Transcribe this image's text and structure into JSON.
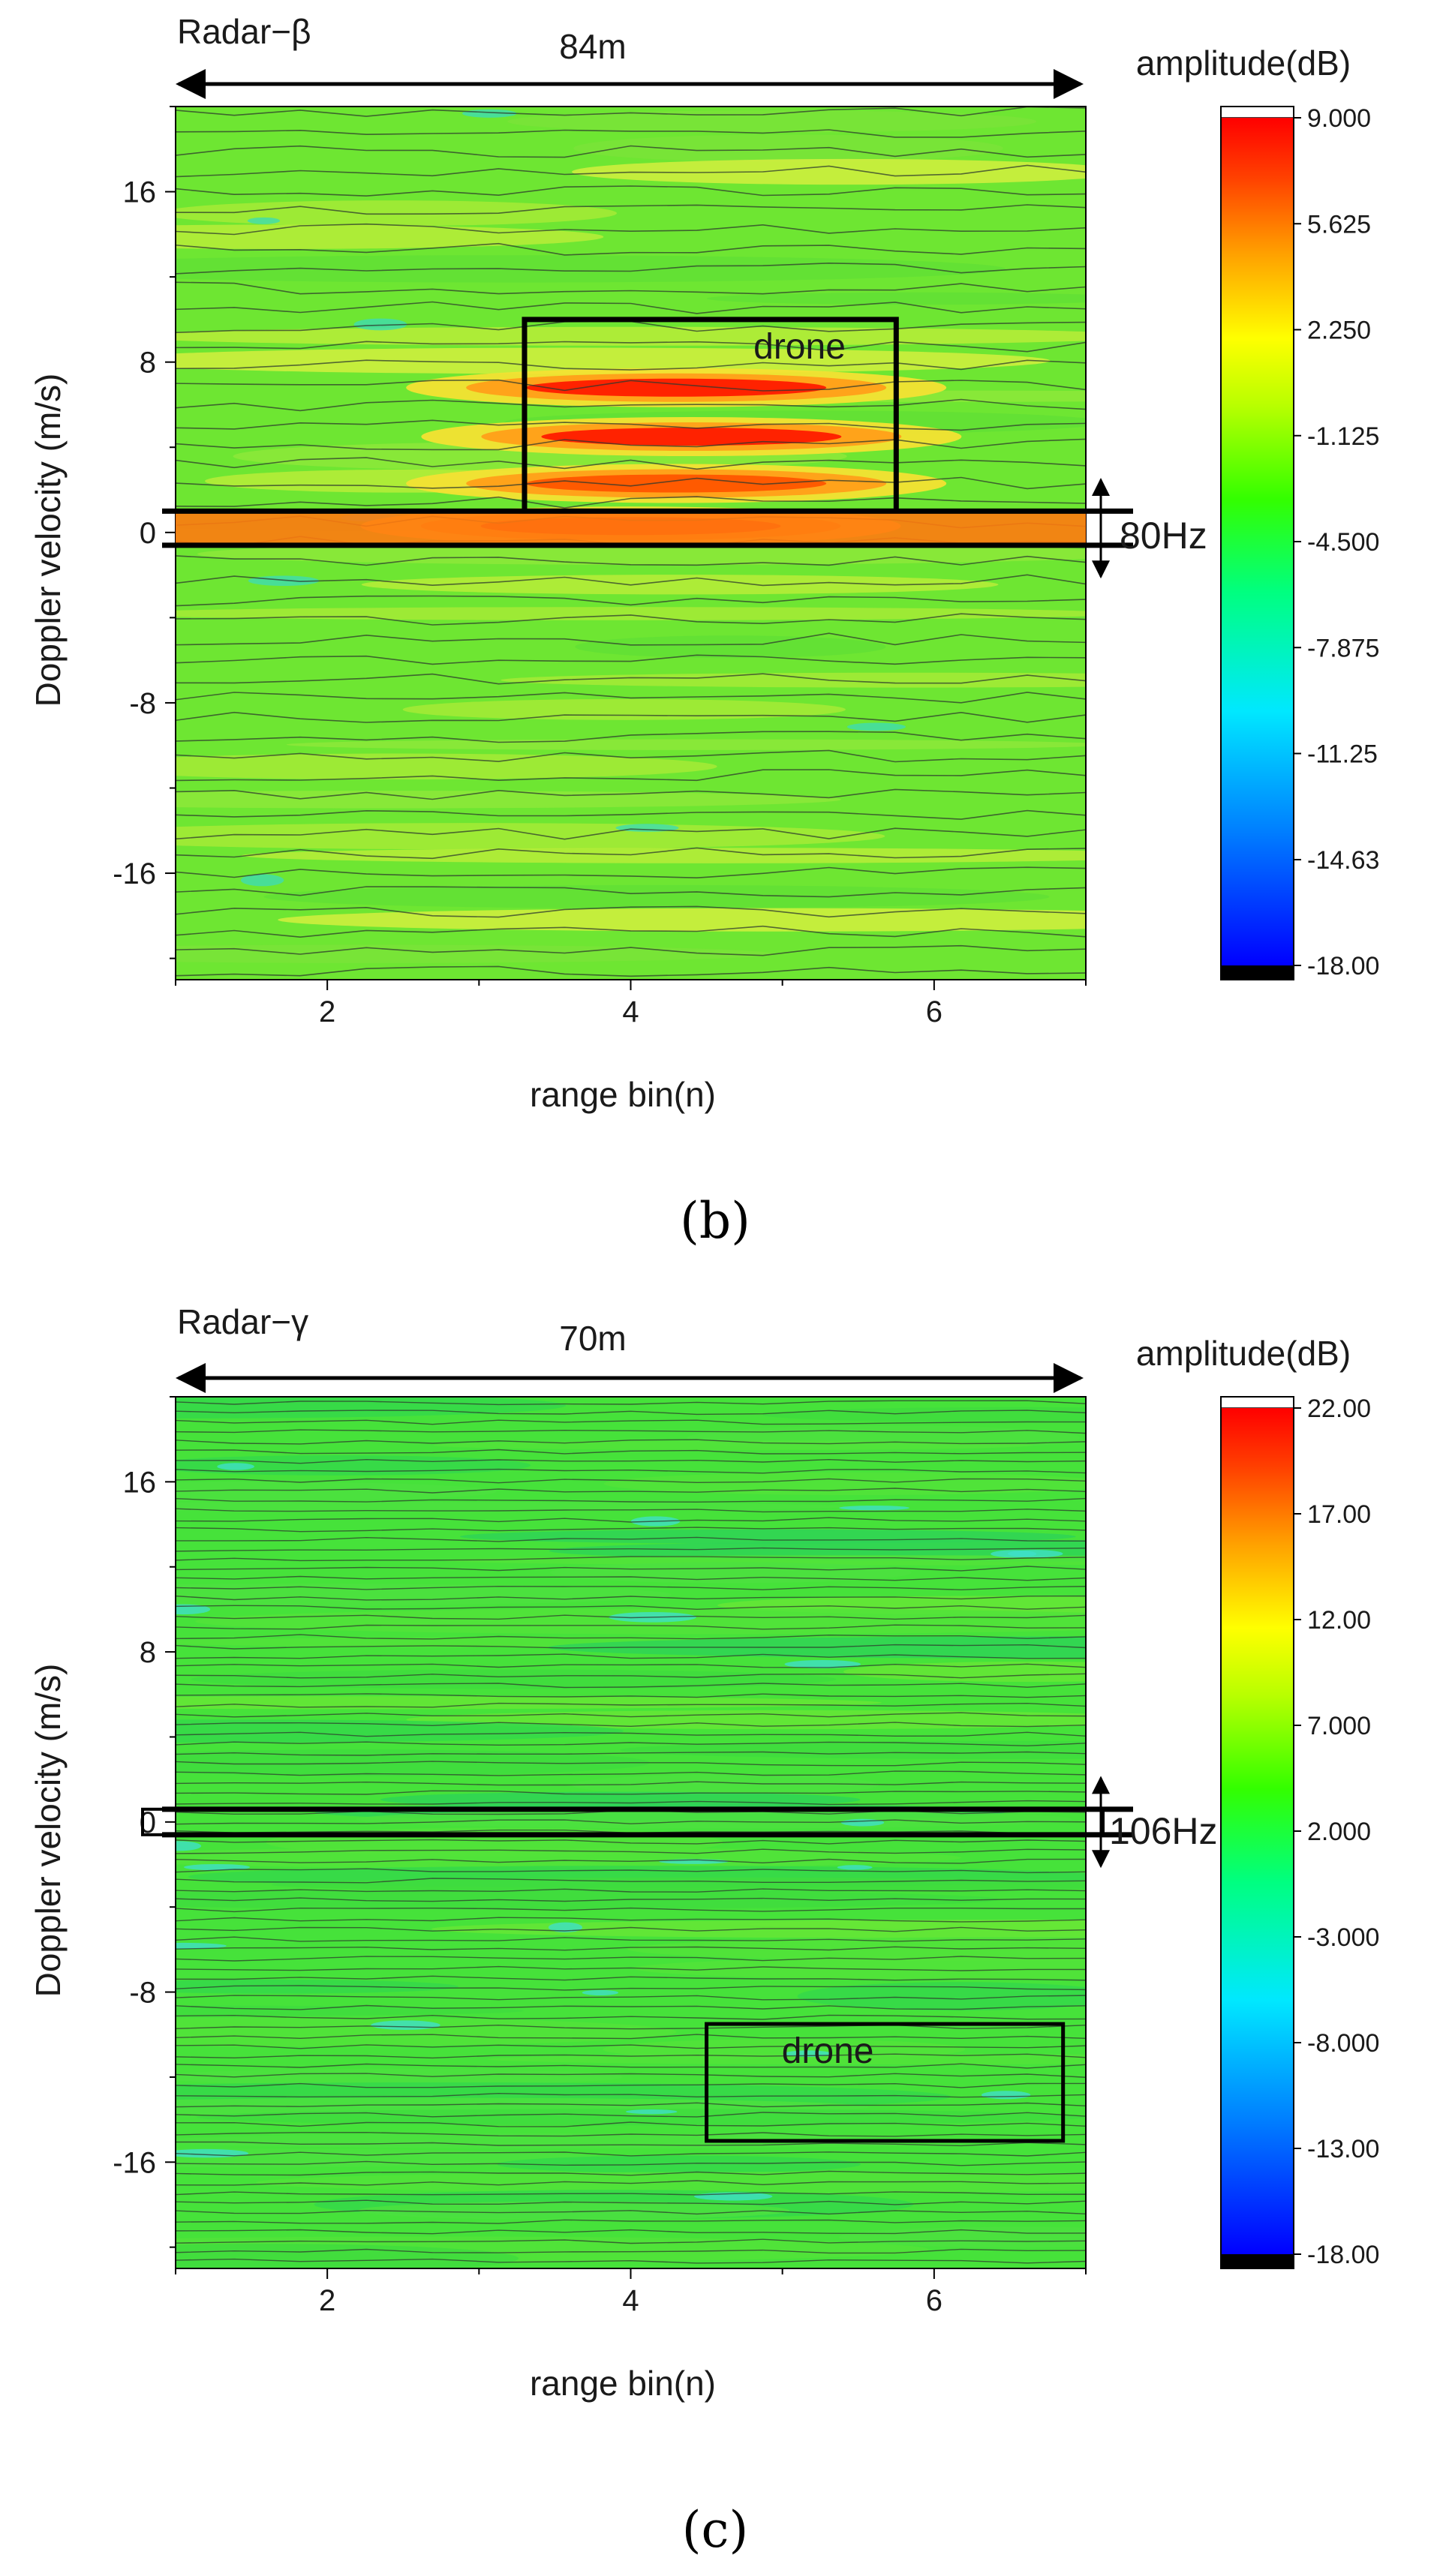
{
  "chart_data": [
    {
      "type": "heatmap",
      "panel_label": "(b)",
      "radar": "Radar−β",
      "span_label": "84m",
      "xlabel": "range bin(n)",
      "ylabel": "Doppler velocity (m/s)",
      "xlim": [
        1,
        7
      ],
      "ylim": [
        -21,
        20
      ],
      "x_ticks": [
        2,
        4,
        6
      ],
      "x_tick_labels": [
        "2",
        "4",
        "6"
      ],
      "y_ticks": [
        16,
        8,
        0,
        -8,
        -16
      ],
      "y_tick_labels": [
        "16",
        "8",
        "0",
        "-8",
        "-16"
      ],
      "colorbar_title": "amplitude(dB)",
      "colorbar_range": [
        -18,
        9
      ],
      "colorbar_labels": [
        "9.000",
        "5.625",
        "2.250",
        "-1.125",
        "-4.500",
        "-7.875",
        "-11.25",
        "-14.63",
        "-18.00"
      ],
      "colorbar_values": [
        9.0,
        5.625,
        2.25,
        -1.125,
        -4.5,
        -7.875,
        -11.25,
        -14.63,
        -18.0
      ],
      "drone_label": "drone",
      "drone_box": {
        "x": [
          3.3,
          5.75
        ],
        "y": [
          1.0,
          10.0
        ]
      },
      "clutter_band_label": "80Hz",
      "clutter_band": {
        "y": [
          -0.6,
          1.0
        ]
      },
      "hot_spots": [
        {
          "x": 4.3,
          "y": 6.8,
          "amplitude": 8.5
        },
        {
          "x": 4.4,
          "y": 4.5,
          "amplitude": 6.0
        },
        {
          "x": 4.3,
          "y": 2.3,
          "amplitude": 4.0
        },
        {
          "x": 4.0,
          "y": 0.3,
          "amplitude": 5.0
        }
      ]
    },
    {
      "type": "heatmap",
      "panel_label": "(c)",
      "radar": "Radar−γ",
      "span_label": "70m",
      "xlabel": "range bin(n)",
      "ylabel": "Doppler velocity (m/s)",
      "xlim": [
        1,
        7
      ],
      "ylim": [
        -21,
        20
      ],
      "x_ticks": [
        2,
        4,
        6
      ],
      "x_tick_labels": [
        "2",
        "4",
        "6"
      ],
      "y_ticks": [
        16,
        8,
        0,
        -8,
        -16
      ],
      "y_tick_labels": [
        "16",
        "8",
        "0",
        "-8",
        "-16"
      ],
      "colorbar_title": "amplitude(dB)",
      "colorbar_range": [
        -18,
        22
      ],
      "colorbar_labels": [
        "22.00",
        "17.00",
        "12.00",
        "7.000",
        "2.000",
        "-3.000",
        "-8.000",
        "-13.00",
        "-18.00"
      ],
      "colorbar_values": [
        22.0,
        17.0,
        12.0,
        7.0,
        2.0,
        -3.0,
        -8.0,
        -13.0,
        -18.0
      ],
      "drone_label": "drone",
      "drone_box": {
        "x": [
          4.5,
          6.85
        ],
        "y": [
          -15.0,
          -9.5
        ]
      },
      "clutter_band_label": "106Hz",
      "clutter_band": {
        "y": [
          -0.6,
          0.6
        ]
      },
      "hot_spots": []
    }
  ]
}
